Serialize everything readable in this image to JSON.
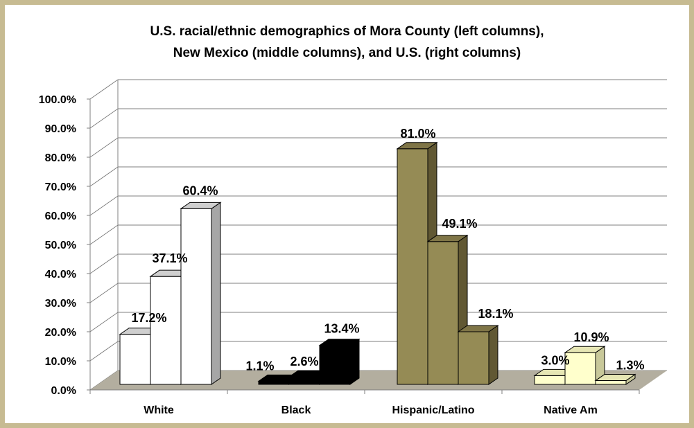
{
  "chart_data": {
    "type": "bar",
    "title": "U.S. racial/ethnic demographics of Mora County (left columns), New Mexico (middle columns), and U.S. (right columns)",
    "title_lines": [
      "U.S. racial/ethnic demographics of Mora County (left columns),",
      "New Mexico (middle columns), and U.S. (right columns)"
    ],
    "categories": [
      "White",
      "Black",
      "Hispanic/Latino",
      "Native Am"
    ],
    "series": [
      {
        "values": [
          17.2,
          1.1,
          81.0,
          3.0
        ]
      },
      {
        "values": [
          37.1,
          2.6,
          49.1,
          10.9
        ]
      },
      {
        "values": [
          60.4,
          13.4,
          18.1,
          1.3
        ]
      }
    ],
    "data_labels": [
      [
        "17.2%",
        "37.1%",
        "60.4%"
      ],
      [
        "1.1%",
        "2.6%",
        "13.4%"
      ],
      [
        "81.0%",
        "49.1%",
        "18.1%"
      ],
      [
        "3.0%",
        "10.9%",
        "1.3%"
      ]
    ],
    "ylim": [
      0,
      100
    ],
    "y_ticks": [
      0,
      10,
      20,
      30,
      40,
      50,
      60,
      70,
      80,
      90,
      100
    ],
    "y_tick_labels": [
      "0.0%",
      "10.0%",
      "20.0%",
      "30.0%",
      "40.0%",
      "50.0%",
      "60.0%",
      "70.0%",
      "80.0%",
      "90.0%",
      "100.0%"
    ],
    "xlabel": "",
    "ylabel": "",
    "grid": true,
    "chart_style": "3d-column",
    "colors": {
      "White": {
        "front": "#ffffff",
        "side": "#a6a6a6",
        "top": "#cfcfcf"
      },
      "Black": {
        "front": "#000000",
        "side": "#000000",
        "top": "#000000"
      },
      "Hispanic/Latino": {
        "front": "#958b55",
        "side": "#615833",
        "top": "#7f7547"
      },
      "Native Am": {
        "front": "#ffffcc",
        "side": "#c8c89a",
        "top": "#e6e6b4"
      },
      "floor": "#b3ae9f",
      "frame": "#c7bb92",
      "gridline": "#7f7f7f"
    }
  }
}
